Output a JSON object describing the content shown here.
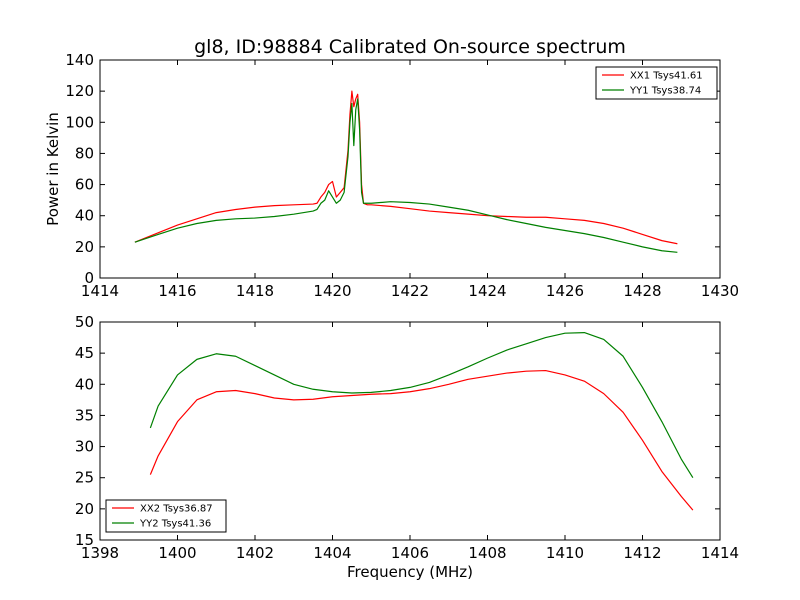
{
  "title": "gl8, ID:98884 Calibrated On-source spectrum",
  "colors": {
    "xx": "#ff0000",
    "yy": "#008000"
  },
  "chart_data": [
    {
      "type": "line",
      "ylabel": "Power in Kelvin",
      "xlabel": "",
      "xlim": [
        1414,
        1430
      ],
      "ylim": [
        0,
        140
      ],
      "xticks": [
        1414,
        1416,
        1418,
        1420,
        1422,
        1424,
        1426,
        1428,
        1430
      ],
      "yticks": [
        0,
        20,
        40,
        60,
        80,
        100,
        120,
        140
      ],
      "legend_position": "top-right",
      "series": [
        {
          "name": "XX1 Tsys41.61",
          "color": "#ff0000",
          "x": [
            1414.9,
            1415.5,
            1416,
            1416.5,
            1417,
            1417.5,
            1418,
            1418.5,
            1419,
            1419.5,
            1419.6,
            1419.7,
            1419.8,
            1419.9,
            1420.0,
            1420.1,
            1420.2,
            1420.3,
            1420.4,
            1420.45,
            1420.5,
            1420.55,
            1420.6,
            1420.65,
            1420.7,
            1420.75,
            1420.8,
            1420.9,
            1421.0,
            1421.5,
            1422,
            1422.5,
            1423,
            1423.5,
            1424,
            1424.5,
            1425,
            1425.5,
            1426,
            1426.5,
            1427,
            1427.5,
            1428,
            1428.5,
            1428.9
          ],
          "y": [
            23,
            29,
            34,
            38,
            42,
            44,
            45.5,
            46.5,
            47,
            47.5,
            48,
            52,
            55,
            60,
            62,
            52,
            55,
            58,
            82,
            105,
            120,
            110,
            115,
            118,
            100,
            60,
            48,
            47,
            47,
            46,
            44.5,
            43,
            42,
            41,
            40,
            39.5,
            39,
            39,
            38,
            37,
            35,
            32,
            28,
            24,
            22
          ]
        },
        {
          "name": "YY1 Tsys38.74",
          "color": "#008000",
          "x": [
            1414.9,
            1415.5,
            1416,
            1416.5,
            1417,
            1417.5,
            1418,
            1418.5,
            1419,
            1419.5,
            1419.6,
            1419.7,
            1419.8,
            1419.9,
            1420.0,
            1420.1,
            1420.2,
            1420.3,
            1420.4,
            1420.45,
            1420.5,
            1420.55,
            1420.6,
            1420.65,
            1420.7,
            1420.75,
            1420.8,
            1420.9,
            1421.0,
            1421.5,
            1422,
            1422.5,
            1423,
            1423.5,
            1424,
            1424.5,
            1425,
            1425.5,
            1426,
            1426.5,
            1427,
            1427.5,
            1428,
            1428.5,
            1428.9
          ],
          "y": [
            23,
            28,
            32,
            35,
            37,
            38,
            38.5,
            39.5,
            41,
            43,
            44,
            48,
            50,
            56,
            52,
            48,
            50,
            55,
            78,
            100,
            112,
            85,
            108,
            115,
            95,
            55,
            48,
            48,
            48,
            49,
            48.5,
            47.5,
            45.5,
            43.5,
            40.5,
            37.5,
            35,
            32.5,
            30.5,
            28.5,
            26,
            23,
            20,
            17.5,
            16.5
          ]
        }
      ]
    },
    {
      "type": "line",
      "ylabel": "",
      "xlabel": "Frequency (MHz)",
      "xlim": [
        1398,
        1414
      ],
      "ylim": [
        15,
        50
      ],
      "xticks": [
        1398,
        1400,
        1402,
        1404,
        1406,
        1408,
        1410,
        1412,
        1414
      ],
      "yticks": [
        15,
        20,
        25,
        30,
        35,
        40,
        45,
        50
      ],
      "legend_position": "bottom-left",
      "series": [
        {
          "name": "XX2 Tsys36.87",
          "color": "#ff0000",
          "x": [
            1399.3,
            1399.5,
            1400,
            1400.5,
            1401,
            1401.5,
            1402,
            1402.5,
            1403,
            1403.5,
            1404,
            1404.5,
            1405,
            1405.5,
            1406,
            1406.5,
            1407,
            1407.5,
            1408,
            1408.5,
            1409,
            1409.5,
            1410,
            1410.5,
            1411,
            1411.5,
            1412,
            1412.5,
            1413,
            1413.3
          ],
          "y": [
            25.5,
            28.5,
            34,
            37.5,
            38.8,
            39,
            38.5,
            37.8,
            37.5,
            37.6,
            38,
            38.2,
            38.4,
            38.5,
            38.8,
            39.3,
            40,
            40.8,
            41.3,
            41.8,
            42.1,
            42.2,
            41.5,
            40.5,
            38.5,
            35.5,
            31,
            26,
            22,
            19.8
          ]
        },
        {
          "name": "YY2 Tsys41.36",
          "color": "#008000",
          "x": [
            1399.3,
            1399.5,
            1400,
            1400.5,
            1401,
            1401.5,
            1402,
            1402.5,
            1403,
            1403.5,
            1404,
            1404.5,
            1405,
            1405.5,
            1406,
            1406.5,
            1407,
            1407.5,
            1408,
            1408.5,
            1409,
            1409.5,
            1410,
            1410.5,
            1411,
            1411.5,
            1412,
            1412.5,
            1413,
            1413.3
          ],
          "y": [
            33,
            36.5,
            41.5,
            44,
            44.9,
            44.5,
            43,
            41.5,
            40,
            39.2,
            38.8,
            38.6,
            38.7,
            39,
            39.5,
            40.3,
            41.5,
            42.8,
            44.2,
            45.5,
            46.5,
            47.5,
            48.2,
            48.3,
            47.2,
            44.5,
            39.5,
            34,
            28,
            25
          ]
        }
      ]
    }
  ]
}
